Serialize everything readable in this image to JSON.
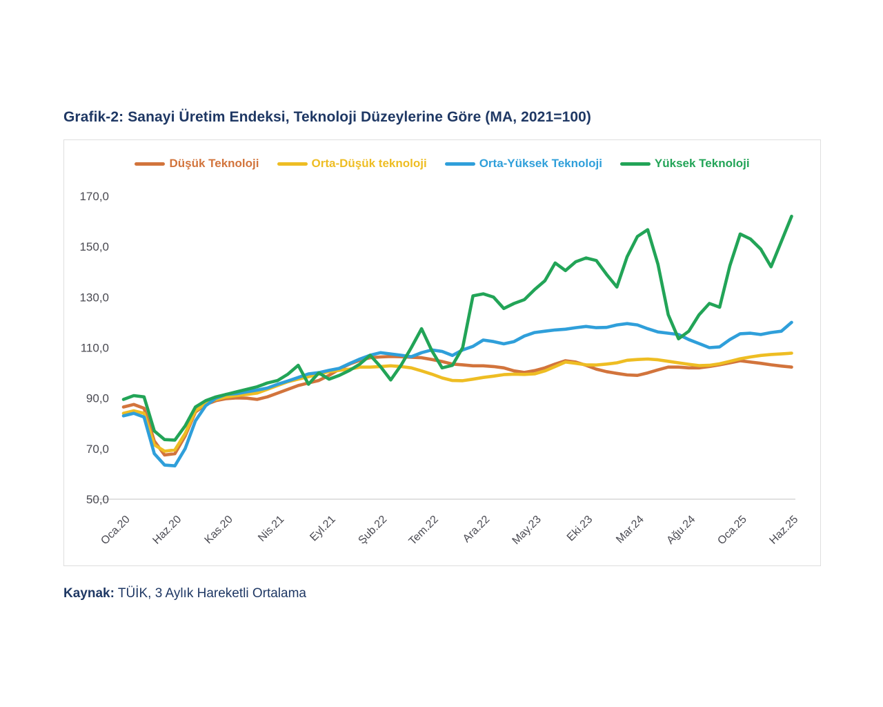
{
  "title": "Grafik-2: Sanayi Üretim Endeksi, Teknoloji Düzeylerine Göre (MA, 2021=100)",
  "source": {
    "label": "Kaynak:",
    "text": " TÜİK, 3 Aylık Hareketli Ortalama"
  },
  "colors": {
    "title_navy": "#1F3864",
    "axis_text": "#4A4A52",
    "baseline_gray": "#D5D5D5",
    "card_border": "#DEDEDE"
  },
  "chart_data": {
    "type": "line",
    "title": "Grafik-2: Sanayi Üretim Endeksi, Teknoloji Düzeylerine Göre (MA, 2021=100)",
    "x_description": "monthly, Jan 2020 - Jun 2025, 66 points",
    "n_points": 66,
    "tick_positions": [
      0,
      5,
      10,
      15,
      20,
      25,
      30,
      35,
      40,
      45,
      50,
      55,
      60,
      65
    ],
    "tick_labels": [
      "Oca.20",
      "Haz.20",
      "Kas.20",
      "Nis.21",
      "Eyl.21",
      "Şub.22",
      "Tem.22",
      "Ara.22",
      "May.23",
      "Eki.23",
      "Mar.24",
      "Ağu.24",
      "Oca.25",
      "Haz.25"
    ],
    "ylim": [
      50,
      170
    ],
    "ytick_step": 20,
    "yticks": [
      {
        "v": 170,
        "label": "170,0"
      },
      {
        "v": 150,
        "label": "150,0"
      },
      {
        "v": 130,
        "label": "130,0"
      },
      {
        "v": 110,
        "label": "110,0"
      },
      {
        "v": 90,
        "label": "90,0"
      },
      {
        "v": 70,
        "label": "70,0"
      },
      {
        "v": 50,
        "label": "50,0"
      }
    ],
    "grid": "none, only baseline at y=50",
    "legend_position": "top",
    "series": [
      {
        "name": "Düşük Teknoloji",
        "color": "#D2743C",
        "values": [
          86.5,
          87.5,
          86,
          73,
          67.5,
          68,
          75,
          84.5,
          87.5,
          89,
          89.8,
          90.1,
          90,
          89.5,
          90.5,
          92,
          93.5,
          95,
          96,
          97,
          99,
          101.5,
          103.5,
          105,
          106,
          106.3,
          106.5,
          106.4,
          106.2,
          106,
          105.3,
          104.5,
          103.5,
          103.2,
          102.8,
          102.8,
          102.5,
          102,
          100.8,
          100.2,
          100.9,
          102,
          103.5,
          104.8,
          104.3,
          103,
          101.5,
          100.5,
          99.8,
          99.2,
          99,
          100,
          101.2,
          102.3,
          102.3,
          102,
          102,
          102.5,
          103.2,
          104,
          104.8,
          104.3,
          103.8,
          103.2,
          102.7,
          102.3
        ]
      },
      {
        "name": "Orta-Düşük teknoloji",
        "color": "#EEBD23",
        "values": [
          84,
          85,
          84,
          71.5,
          69,
          69.5,
          76,
          85,
          88,
          89.5,
          90.5,
          91,
          91.5,
          92,
          93.5,
          95,
          96.5,
          97.5,
          98.5,
          99.5,
          100.5,
          101,
          101.5,
          102.3,
          102.3,
          102.5,
          102.8,
          102.5,
          102,
          100.8,
          99.5,
          98,
          97,
          96.9,
          97.5,
          98.2,
          98.7,
          99.3,
          99.5,
          99.4,
          99.6,
          100.8,
          102.5,
          104.3,
          103.8,
          103.2,
          103.1,
          103.5,
          104,
          105,
          105.3,
          105.5,
          105.2,
          104.6,
          104,
          103.4,
          102.9,
          103,
          103.6,
          104.6,
          105.6,
          106.3,
          106.9,
          107.3,
          107.5,
          107.8
        ]
      },
      {
        "name": "Orta-Yüksek Teknoloji",
        "color": "#2F9FDA",
        "values": [
          83,
          84,
          82.5,
          68,
          63.5,
          63.2,
          70,
          81,
          87,
          90,
          91.5,
          91.8,
          92.5,
          93.2,
          94,
          95.5,
          96.8,
          98.2,
          99.6,
          100.1,
          101,
          101.8,
          103.7,
          105.5,
          107,
          108,
          107.5,
          107,
          106.4,
          108,
          109.1,
          108.5,
          106.9,
          109.1,
          110.5,
          113,
          112.4,
          111.5,
          112.4,
          114.6,
          116,
          116.5,
          117,
          117.3,
          117.9,
          118.4,
          117.9,
          118,
          119,
          119.5,
          119,
          117.5,
          116.2,
          115.7,
          115.2,
          113.2,
          111.6,
          110,
          110.3,
          113.2,
          115.5,
          115.7,
          115.2,
          116,
          116.5,
          120
        ]
      },
      {
        "name": "Yüksek Teknoloji",
        "color": "#22A457",
        "values": [
          89.5,
          91,
          90.5,
          77,
          73.6,
          73.4,
          79,
          86.5,
          89,
          90.5,
          91.5,
          92.5,
          93.5,
          94.5,
          96,
          97,
          99.5,
          103,
          95.5,
          100,
          97.5,
          99,
          101,
          103.5,
          107,
          102.5,
          97.2,
          103,
          110,
          117.5,
          108.8,
          102,
          103,
          110,
          130.5,
          131.3,
          130,
          125.5,
          127.5,
          129,
          133,
          136.5,
          143.5,
          140.5,
          144,
          145.5,
          144.5,
          139,
          134,
          146,
          154,
          156.7,
          143,
          123,
          113.5,
          116.5,
          123,
          127.5,
          126,
          142.5,
          155,
          153,
          149,
          142,
          152,
          162
        ]
      }
    ]
  }
}
